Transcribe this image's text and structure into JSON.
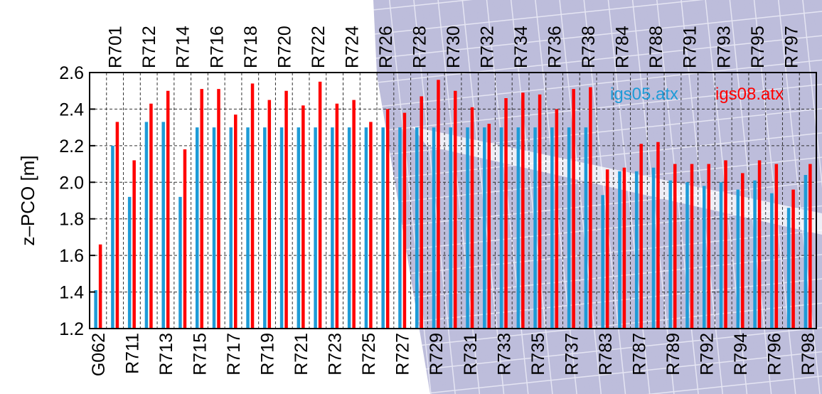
{
  "chart_data": {
    "type": "bar",
    "ylabel": "z–PCO [m]",
    "ylim": [
      1.2,
      2.6
    ],
    "yticks": [
      "1.2",
      "1.4",
      "1.6",
      "1.8",
      "2.0",
      "2.2",
      "2.4",
      "2.6"
    ],
    "grid": true,
    "legend_position": "top-right",
    "categories": [
      "G062",
      "R701",
      "R711",
      "R712",
      "R713",
      "R714",
      "R715",
      "R716",
      "R717",
      "R718",
      "R719",
      "R720",
      "R721",
      "R722",
      "R723",
      "R724",
      "R725",
      "R726",
      "R727",
      "R728",
      "R729",
      "R730",
      "R731",
      "R732",
      "R733",
      "R734",
      "R735",
      "R736",
      "R737",
      "R738",
      "R783",
      "R784",
      "R787",
      "R788",
      "R789",
      "R791",
      "R792",
      "R793",
      "R794",
      "R795",
      "R796",
      "R797",
      "R798"
    ],
    "series": [
      {
        "name": "igs05.atx",
        "color": "#1e9bd7",
        "values": [
          1.41,
          2.2,
          1.92,
          2.33,
          2.33,
          1.92,
          2.3,
          2.3,
          2.3,
          2.3,
          2.3,
          2.3,
          2.3,
          2.3,
          2.3,
          2.3,
          2.3,
          2.3,
          2.3,
          2.3,
          2.3,
          2.3,
          2.3,
          2.3,
          2.3,
          2.3,
          2.3,
          2.3,
          2.3,
          2.3,
          1.93,
          2.06,
          2.06,
          2.08,
          2.01,
          2.0,
          1.98,
          2.0,
          1.96,
          2.01,
          1.94,
          1.86,
          2.04
        ]
      },
      {
        "name": "igs08.atx",
        "color": "#ff0000",
        "values": [
          1.66,
          2.33,
          2.12,
          2.43,
          2.5,
          2.18,
          2.51,
          2.51,
          2.37,
          2.54,
          2.45,
          2.5,
          2.42,
          2.55,
          2.43,
          2.45,
          2.33,
          2.4,
          2.38,
          2.47,
          2.56,
          2.5,
          2.41,
          2.32,
          2.46,
          2.49,
          2.48,
          2.4,
          2.51,
          2.52,
          2.07,
          2.08,
          2.21,
          2.22,
          2.1,
          2.1,
          2.1,
          2.12,
          2.05,
          2.12,
          2.1,
          1.96,
          2.1
        ]
      }
    ]
  }
}
